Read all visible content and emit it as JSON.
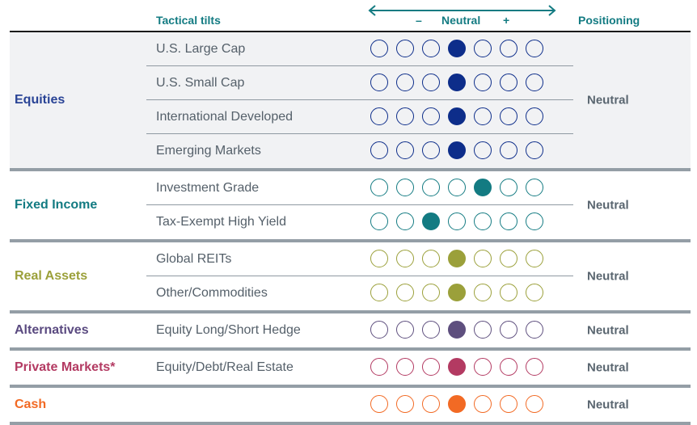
{
  "header": {
    "tactical_tilts": "Tactical tilts",
    "minus": "–",
    "neutral": "Neutral",
    "plus": "+",
    "positioning": "Positioning",
    "arrow_icon": "double-headed-arrow"
  },
  "scale_points": 7,
  "groups": [
    {
      "name": "Equities",
      "color": "#2a4496",
      "dot_color": "#0d2d8a",
      "positioning": "Neutral",
      "shaded": true,
      "rows": [
        {
          "label": "U.S. Large Cap",
          "selected": 4
        },
        {
          "label": "U.S. Small Cap",
          "selected": 4
        },
        {
          "label": "International Developed",
          "selected": 4
        },
        {
          "label": "Emerging Markets",
          "selected": 4
        }
      ]
    },
    {
      "name": "Fixed Income",
      "color": "#137b82",
      "dot_color": "#137b82",
      "positioning": "Neutral",
      "shaded": false,
      "rows": [
        {
          "label": "Investment Grade",
          "selected": 5
        },
        {
          "label": "Tax-Exempt High Yield",
          "selected": 3
        }
      ]
    },
    {
      "name": "Real Assets",
      "color": "#9ba03a",
      "dot_color": "#9ba03a",
      "positioning": "Neutral",
      "shaded": false,
      "rows": [
        {
          "label": "Global REITs",
          "selected": 4
        },
        {
          "label": "Other/Commodities",
          "selected": 4
        }
      ]
    },
    {
      "name": "Alternatives",
      "color": "#5a4a80",
      "dot_color": "#5e4f7e",
      "positioning": "Neutral",
      "shaded": false,
      "rows": [
        {
          "label": "Equity Long/Short Hedge",
          "selected": 4
        }
      ]
    },
    {
      "name": "Private Markets*",
      "color": "#b33a62",
      "dot_color": "#b33a62",
      "positioning": "Neutral",
      "shaded": false,
      "rows": [
        {
          "label": "Equity/Debt/Real Estate",
          "selected": 4
        }
      ]
    },
    {
      "name": "Cash",
      "color": "#f26a24",
      "dot_color": "#f26a24",
      "positioning": "Neutral",
      "shaded": false,
      "rows": [
        {
          "label": "",
          "selected": 4
        }
      ]
    }
  ],
  "separator_color": "#949ea6",
  "shade_color": "#f1f2f4"
}
